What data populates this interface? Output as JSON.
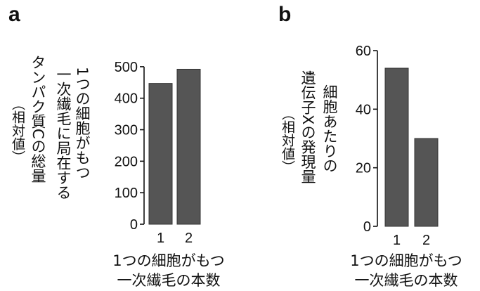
{
  "colors": {
    "bar": "#555555",
    "axis": "#111111"
  },
  "chart_data": [
    {
      "panel": "a",
      "type": "bar",
      "categories": [
        "1",
        "2"
      ],
      "values": [
        447,
        492
      ],
      "ylim": [
        0,
        560
      ],
      "yticks": [
        "0",
        "100",
        "200",
        "300",
        "400",
        "500"
      ],
      "ylabel_lines": [
        "1つの細胞がもつ",
        "一次繊毛に局在する",
        "タンパク質Cの総量",
        "（相対値）"
      ],
      "xlabel_lines": [
        "1つの細胞がもつ",
        "一次繊毛の本数"
      ],
      "grid": false,
      "legend": "none"
    },
    {
      "panel": "b",
      "type": "bar",
      "categories": [
        "1",
        "2"
      ],
      "values": [
        54,
        30
      ],
      "ylim": [
        0,
        60
      ],
      "yticks": [
        "0",
        "20",
        "40",
        "60"
      ],
      "ylabel_lines": [
        "細胞あたりの",
        "遺伝子Xの発現量",
        "（相対値）"
      ],
      "xlabel_lines": [
        "1つの細胞がもつ",
        "一次繊毛の本数"
      ],
      "grid": false,
      "legend": "none"
    }
  ]
}
